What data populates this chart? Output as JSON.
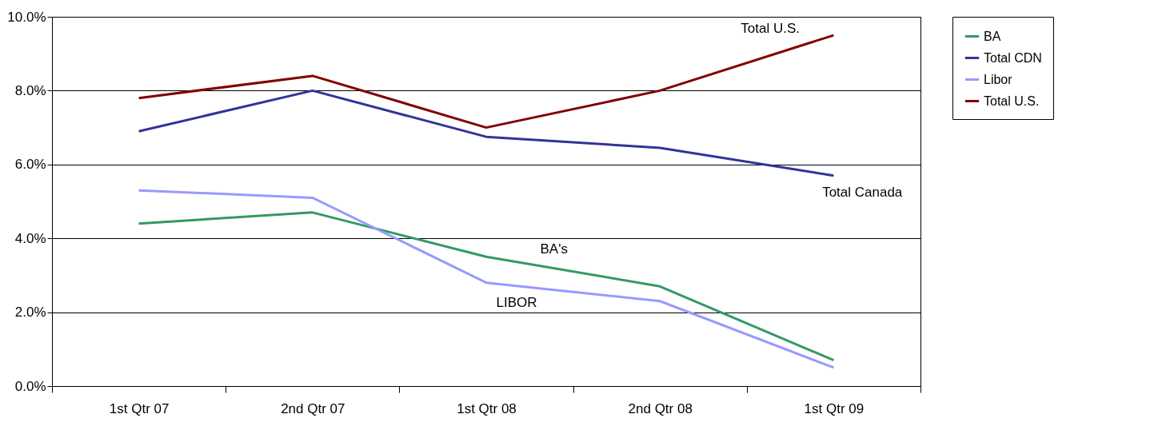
{
  "chart_data": {
    "type": "line",
    "categories": [
      "1st Qtr 07",
      "2nd Qtr 07",
      "1st Qtr 08",
      "2nd Qtr 08",
      "1st Qtr 09"
    ],
    "series": [
      {
        "name": "BA",
        "color": "#339966",
        "values": [
          4.4,
          4.7,
          3.5,
          2.7,
          0.7
        ]
      },
      {
        "name": "Total CDN",
        "color": "#333399",
        "values": [
          6.9,
          8.0,
          6.75,
          6.45,
          5.7
        ]
      },
      {
        "name": "Libor",
        "color": "#9999ff",
        "values": [
          5.3,
          5.1,
          2.8,
          2.3,
          0.5
        ]
      },
      {
        "name": "Total U.S.",
        "color": "#800000",
        "values": [
          7.8,
          8.4,
          7.0,
          8.0,
          9.5
        ]
      }
    ],
    "ylim": [
      0,
      10
    ],
    "yticks": [
      {
        "value": 0,
        "label": "0.0%"
      },
      {
        "value": 2,
        "label": "2.0%"
      },
      {
        "value": 4,
        "label": "4.0%"
      },
      {
        "value": 6,
        "label": "6.0%"
      },
      {
        "value": 8,
        "label": "8.0%"
      },
      {
        "value": 10,
        "label": "10.0%"
      }
    ],
    "grid": "y",
    "legend": "right",
    "marker": "none",
    "line_style": "solid",
    "annotations": [
      "Total U.S.",
      "Total Canada",
      "BA's",
      "LIBOR"
    ]
  }
}
